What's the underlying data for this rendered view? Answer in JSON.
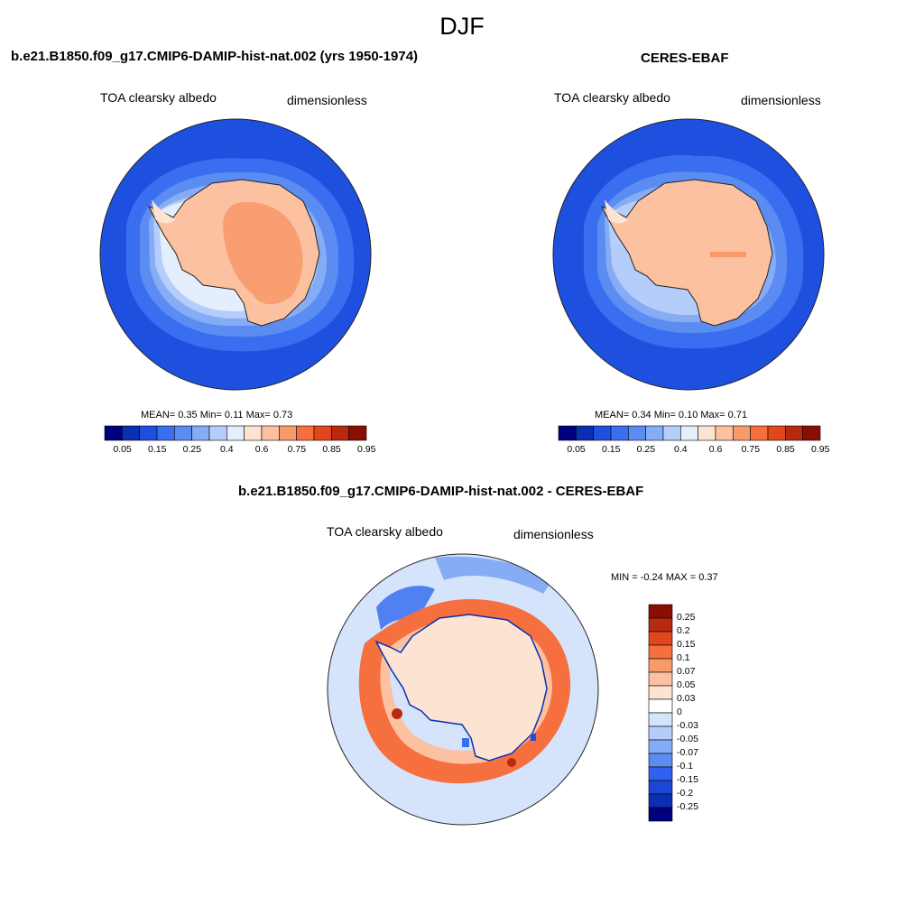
{
  "title": "DJF",
  "panels": {
    "model": {
      "title": "b.e21.B1850.f09_g17.CMIP6-DAMIP-hist-nat.002 (yrs 1950-1974)",
      "variable": "TOA clearsky albedo",
      "units": "dimensionless",
      "stats": "MEAN=   0.35  Min=    0.11  Max=    0.73"
    },
    "obs": {
      "title": "CERES-EBAF",
      "variable": "TOA clearsky albedo",
      "units": "dimensionless",
      "stats": "MEAN=   0.34  Min=    0.10  Max=    0.71"
    },
    "diff": {
      "title": "b.e21.B1850.f09_g17.CMIP6-DAMIP-hist-nat.002 - CERES-EBAF",
      "variable": "TOA clearsky albedo",
      "units": "dimensionless",
      "stats": "MIN =   -0.24 MAX =    0.37"
    }
  },
  "colorbar_abs": {
    "colors": [
      "#00007f",
      "#0a2fb0",
      "#1e50e0",
      "#3a6ef0",
      "#5b8cf2",
      "#86acf6",
      "#b4cdfa",
      "#e5eefd",
      "#fde3d2",
      "#fbc1a0",
      "#f89a6a",
      "#f5703e",
      "#e2461c",
      "#b82a10",
      "#8b0e04"
    ],
    "labels": [
      "0.05",
      "0.15",
      "0.25",
      "0.4",
      "0.6",
      "0.75",
      "0.85",
      "0.95"
    ]
  },
  "colorbar_diff": {
    "colors": [
      "#8b0e04",
      "#b82a10",
      "#e2461c",
      "#f5703e",
      "#f89a6a",
      "#fbc1a0",
      "#fde3d2",
      "#ffffff",
      "#d6e4fb",
      "#b4cdfa",
      "#86acf6",
      "#5b8cf2",
      "#2f63ef",
      "#1b46d6",
      "#0a2fb0",
      "#00007f"
    ],
    "labels": [
      "0.25",
      "0.2",
      "0.15",
      "0.1",
      "0.07",
      "0.05",
      "0.03",
      "0",
      "-0.03",
      "-0.05",
      "-0.07",
      "-0.1",
      "-0.15",
      "-0.2",
      "-0.25"
    ]
  }
}
